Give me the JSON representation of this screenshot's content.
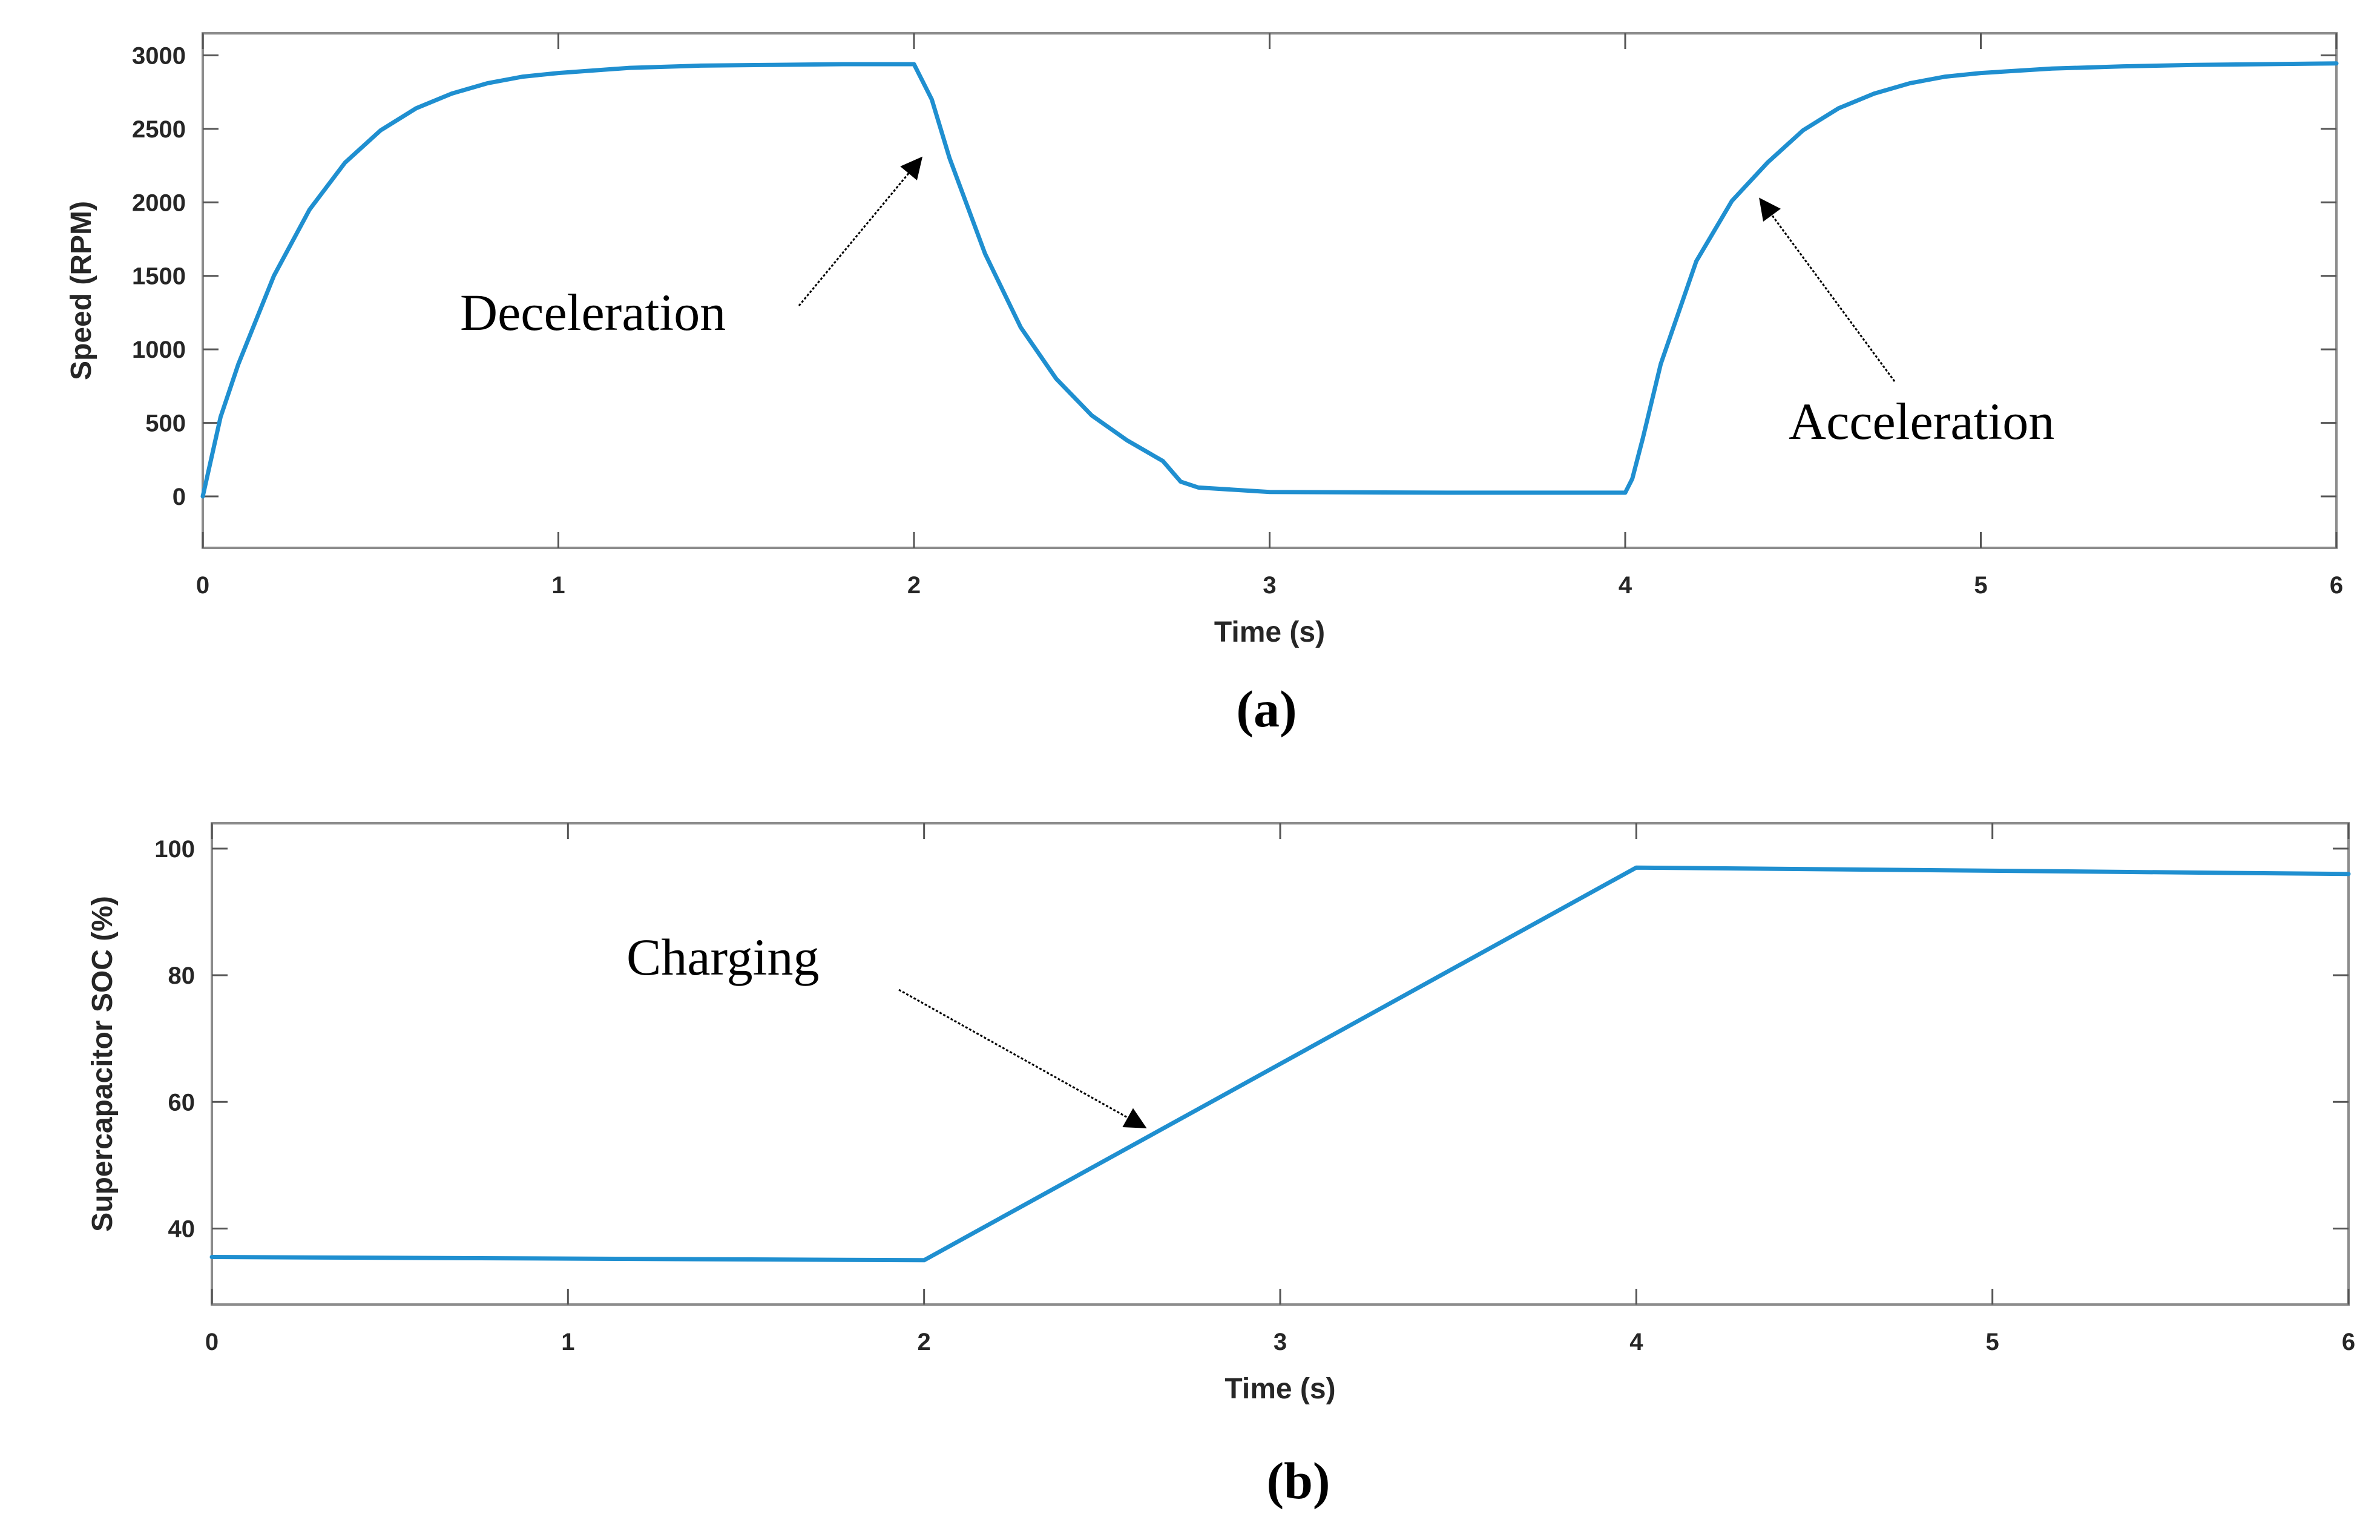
{
  "chart_data": [
    {
      "type": "line",
      "panel_label": "(a)",
      "xlabel": "Time (s)",
      "ylabel": "Speed (RPM)",
      "xlim": [
        0,
        6
      ],
      "ylim": [
        -350,
        3150
      ],
      "xticks": [
        0,
        1,
        2,
        3,
        4,
        5,
        6
      ],
      "yticks": [
        0,
        500,
        1000,
        1500,
        2000,
        2500,
        3000
      ],
      "grid": false,
      "series": [
        {
          "color": "#1f8fd0",
          "x": [
            0,
            0.05,
            0.1,
            0.2,
            0.3,
            0.4,
            0.5,
            0.6,
            0.7,
            0.8,
            0.9,
            1.0,
            1.2,
            1.4,
            1.6,
            1.8,
            2.0,
            2.05,
            2.1,
            2.2,
            2.3,
            2.4,
            2.5,
            2.6,
            2.7,
            2.75,
            2.8,
            3.0,
            3.5,
            4.0,
            4.02,
            4.05,
            4.1,
            4.2,
            4.3,
            4.4,
            4.5,
            4.6,
            4.7,
            4.8,
            4.9,
            5.0,
            5.2,
            5.4,
            5.6,
            5.8,
            6.0
          ],
          "y": [
            0,
            540,
            900,
            1500,
            1950,
            2270,
            2490,
            2640,
            2740,
            2810,
            2855,
            2880,
            2915,
            2930,
            2935,
            2940,
            2940,
            2700,
            2300,
            1650,
            1150,
            800,
            550,
            380,
            240,
            100,
            60,
            30,
            25,
            25,
            120,
            400,
            900,
            1600,
            2010,
            2270,
            2490,
            2640,
            2740,
            2810,
            2855,
            2880,
            2910,
            2925,
            2935,
            2940,
            2945
          ]
        }
      ],
      "annotations": [
        {
          "text": "Deceleration",
          "arrow_to": [
            2.02,
            2300
          ]
        },
        {
          "text": "Acceleration",
          "arrow_to": [
            4.38,
            2020
          ]
        }
      ]
    },
    {
      "type": "line",
      "panel_label": "(b)",
      "xlabel": "Time (s)",
      "ylabel": "Supercapacitor SOC (%)",
      "xlim": [
        0,
        6
      ],
      "ylim": [
        28,
        104
      ],
      "xticks": [
        0,
        1,
        2,
        3,
        4,
        5,
        6
      ],
      "yticks": [
        40,
        60,
        80,
        100
      ],
      "grid": false,
      "series": [
        {
          "color": "#1f8fd0",
          "x": [
            0,
            2.0,
            4.0,
            6.0
          ],
          "y": [
            35.5,
            35.0,
            97.0,
            96.0
          ]
        }
      ],
      "annotations": [
        {
          "text": "Charging",
          "arrow_to": [
            2.62,
            56
          ]
        }
      ]
    }
  ]
}
